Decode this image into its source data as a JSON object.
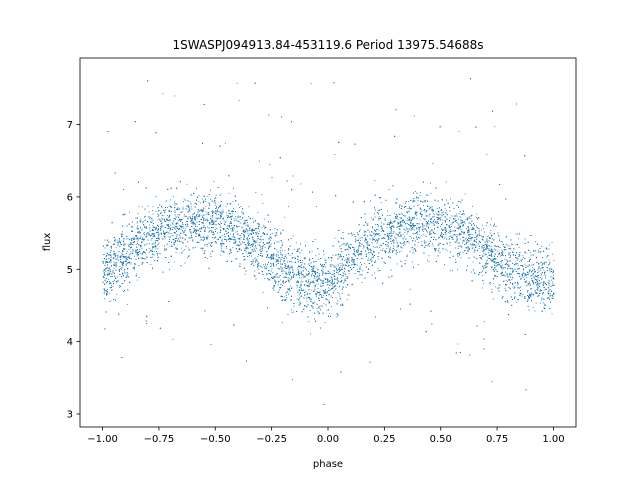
{
  "chart_data": {
    "type": "scatter",
    "title": "1SWASPJ094913.84-453119.6 Period 13975.54688s",
    "xlabel": "phase",
    "ylabel": "flux",
    "xlim": [
      -1.1,
      1.1
    ],
    "ylim": [
      2.82,
      7.92
    ],
    "x_ticks": [
      -1.0,
      -0.75,
      -0.5,
      -0.25,
      0.0,
      0.25,
      0.5,
      0.75,
      1.0
    ],
    "x_tick_labels": [
      "−1.00",
      "−0.75",
      "−0.50",
      "−0.25",
      "0.00",
      "0.25",
      "0.50",
      "0.75",
      "1.00"
    ],
    "y_ticks": [
      3,
      4,
      5,
      6,
      7
    ],
    "y_tick_labels": [
      "3",
      "4",
      "5",
      "6",
      "7"
    ],
    "grid": false,
    "point_color": "#1f77b4",
    "series": [
      {
        "phase": [
          -1.0,
          -0.9,
          -0.8,
          -0.7,
          -0.6,
          -0.5,
          -0.4,
          -0.3,
          -0.2,
          -0.1,
          0.0,
          0.1,
          0.2,
          0.3,
          0.4,
          0.5,
          0.6,
          0.7,
          0.8,
          0.9,
          1.0
        ],
        "flux": [
          4.95,
          5.2,
          5.45,
          5.6,
          5.67,
          5.62,
          5.5,
          5.3,
          5.0,
          4.82,
          4.8,
          5.1,
          5.4,
          5.55,
          5.65,
          5.62,
          5.5,
          5.25,
          5.0,
          4.87,
          4.85
        ]
      }
    ]
  }
}
